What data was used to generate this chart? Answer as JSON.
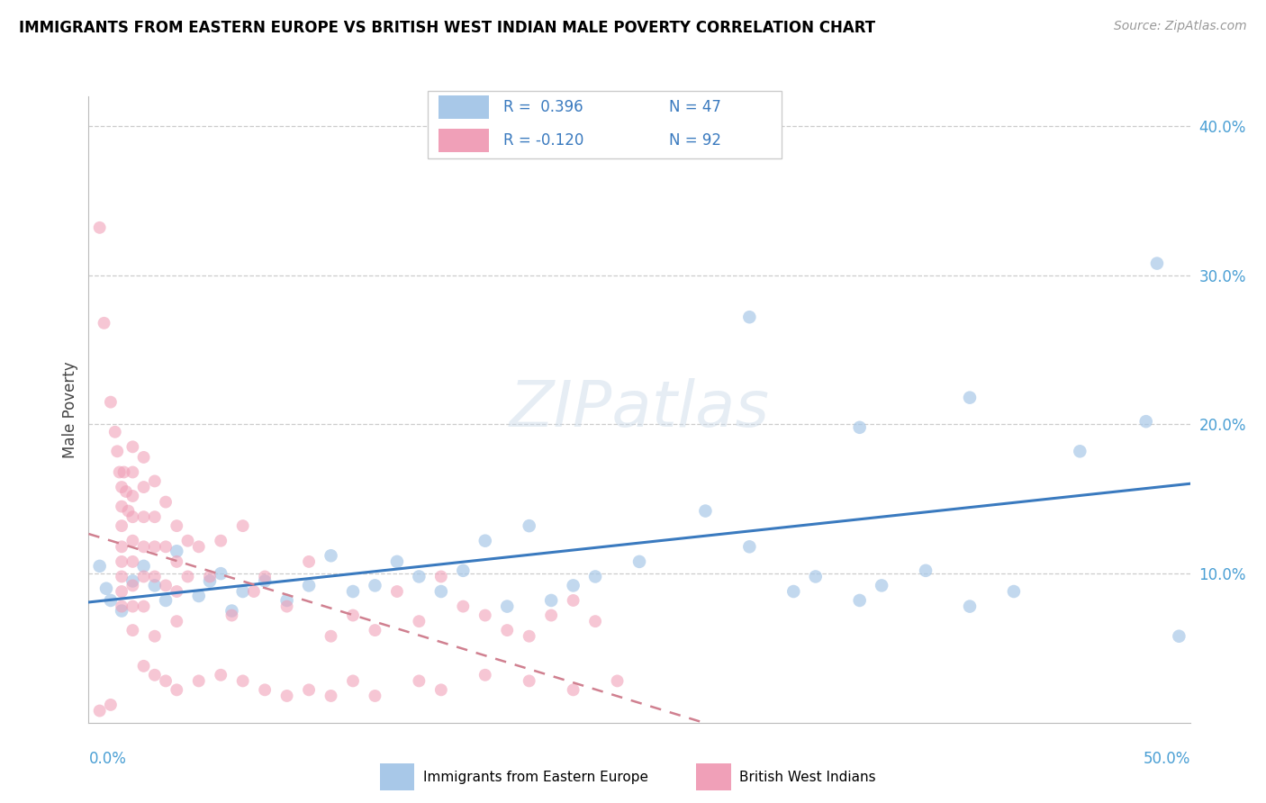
{
  "title": "IMMIGRANTS FROM EASTERN EUROPE VS BRITISH WEST INDIAN MALE POVERTY CORRELATION CHART",
  "source": "Source: ZipAtlas.com",
  "ylabel": "Male Poverty",
  "right_yticks": [
    "10.0%",
    "20.0%",
    "30.0%",
    "40.0%"
  ],
  "right_ytick_vals": [
    0.1,
    0.2,
    0.3,
    0.4
  ],
  "xlim": [
    0.0,
    0.5
  ],
  "ylim": [
    0.0,
    0.42
  ],
  "blue_color": "#a8c8e8",
  "pink_color": "#f0a0b8",
  "blue_line_color": "#3a7abf",
  "pink_line_color": "#d08090",
  "blue_scatter": [
    [
      0.005,
      0.105
    ],
    [
      0.008,
      0.09
    ],
    [
      0.01,
      0.082
    ],
    [
      0.015,
      0.075
    ],
    [
      0.02,
      0.095
    ],
    [
      0.025,
      0.105
    ],
    [
      0.03,
      0.092
    ],
    [
      0.035,
      0.082
    ],
    [
      0.04,
      0.115
    ],
    [
      0.05,
      0.085
    ],
    [
      0.055,
      0.095
    ],
    [
      0.06,
      0.1
    ],
    [
      0.065,
      0.075
    ],
    [
      0.07,
      0.088
    ],
    [
      0.08,
      0.095
    ],
    [
      0.09,
      0.082
    ],
    [
      0.1,
      0.092
    ],
    [
      0.11,
      0.112
    ],
    [
      0.12,
      0.088
    ],
    [
      0.13,
      0.092
    ],
    [
      0.14,
      0.108
    ],
    [
      0.15,
      0.098
    ],
    [
      0.16,
      0.088
    ],
    [
      0.17,
      0.102
    ],
    [
      0.18,
      0.122
    ],
    [
      0.19,
      0.078
    ],
    [
      0.2,
      0.132
    ],
    [
      0.21,
      0.082
    ],
    [
      0.22,
      0.092
    ],
    [
      0.23,
      0.098
    ],
    [
      0.25,
      0.108
    ],
    [
      0.28,
      0.142
    ],
    [
      0.3,
      0.118
    ],
    [
      0.32,
      0.088
    ],
    [
      0.33,
      0.098
    ],
    [
      0.35,
      0.082
    ],
    [
      0.36,
      0.092
    ],
    [
      0.38,
      0.102
    ],
    [
      0.4,
      0.078
    ],
    [
      0.42,
      0.088
    ],
    [
      0.3,
      0.272
    ],
    [
      0.35,
      0.198
    ],
    [
      0.4,
      0.218
    ],
    [
      0.45,
      0.182
    ],
    [
      0.48,
      0.202
    ],
    [
      0.485,
      0.308
    ],
    [
      0.495,
      0.058
    ]
  ],
  "pink_scatter": [
    [
      0.005,
      0.332
    ],
    [
      0.007,
      0.268
    ],
    [
      0.01,
      0.215
    ],
    [
      0.012,
      0.195
    ],
    [
      0.013,
      0.182
    ],
    [
      0.014,
      0.168
    ],
    [
      0.015,
      0.158
    ],
    [
      0.015,
      0.145
    ],
    [
      0.015,
      0.132
    ],
    [
      0.015,
      0.118
    ],
    [
      0.015,
      0.108
    ],
    [
      0.015,
      0.098
    ],
    [
      0.015,
      0.088
    ],
    [
      0.015,
      0.078
    ],
    [
      0.016,
      0.168
    ],
    [
      0.017,
      0.155
    ],
    [
      0.018,
      0.142
    ],
    [
      0.02,
      0.185
    ],
    [
      0.02,
      0.168
    ],
    [
      0.02,
      0.152
    ],
    [
      0.02,
      0.138
    ],
    [
      0.02,
      0.122
    ],
    [
      0.02,
      0.108
    ],
    [
      0.02,
      0.092
    ],
    [
      0.02,
      0.078
    ],
    [
      0.02,
      0.062
    ],
    [
      0.025,
      0.178
    ],
    [
      0.025,
      0.158
    ],
    [
      0.025,
      0.138
    ],
    [
      0.025,
      0.118
    ],
    [
      0.025,
      0.098
    ],
    [
      0.025,
      0.078
    ],
    [
      0.03,
      0.162
    ],
    [
      0.03,
      0.138
    ],
    [
      0.03,
      0.118
    ],
    [
      0.03,
      0.098
    ],
    [
      0.03,
      0.058
    ],
    [
      0.035,
      0.148
    ],
    [
      0.035,
      0.118
    ],
    [
      0.035,
      0.092
    ],
    [
      0.04,
      0.132
    ],
    [
      0.04,
      0.108
    ],
    [
      0.04,
      0.088
    ],
    [
      0.04,
      0.068
    ],
    [
      0.045,
      0.122
    ],
    [
      0.045,
      0.098
    ],
    [
      0.05,
      0.118
    ],
    [
      0.055,
      0.098
    ],
    [
      0.06,
      0.122
    ],
    [
      0.065,
      0.072
    ],
    [
      0.07,
      0.132
    ],
    [
      0.075,
      0.088
    ],
    [
      0.08,
      0.098
    ],
    [
      0.09,
      0.078
    ],
    [
      0.1,
      0.108
    ],
    [
      0.11,
      0.058
    ],
    [
      0.12,
      0.072
    ],
    [
      0.13,
      0.062
    ],
    [
      0.14,
      0.088
    ],
    [
      0.15,
      0.068
    ],
    [
      0.16,
      0.098
    ],
    [
      0.17,
      0.078
    ],
    [
      0.18,
      0.072
    ],
    [
      0.19,
      0.062
    ],
    [
      0.2,
      0.058
    ],
    [
      0.21,
      0.072
    ],
    [
      0.22,
      0.082
    ],
    [
      0.23,
      0.068
    ],
    [
      0.025,
      0.038
    ],
    [
      0.03,
      0.032
    ],
    [
      0.035,
      0.028
    ],
    [
      0.04,
      0.022
    ],
    [
      0.05,
      0.028
    ],
    [
      0.06,
      0.032
    ],
    [
      0.07,
      0.028
    ],
    [
      0.08,
      0.022
    ],
    [
      0.09,
      0.018
    ],
    [
      0.1,
      0.022
    ],
    [
      0.11,
      0.018
    ],
    [
      0.12,
      0.028
    ],
    [
      0.13,
      0.018
    ],
    [
      0.15,
      0.028
    ],
    [
      0.16,
      0.022
    ],
    [
      0.18,
      0.032
    ],
    [
      0.2,
      0.028
    ],
    [
      0.22,
      0.022
    ],
    [
      0.24,
      0.028
    ],
    [
      0.005,
      0.008
    ],
    [
      0.01,
      0.012
    ]
  ]
}
